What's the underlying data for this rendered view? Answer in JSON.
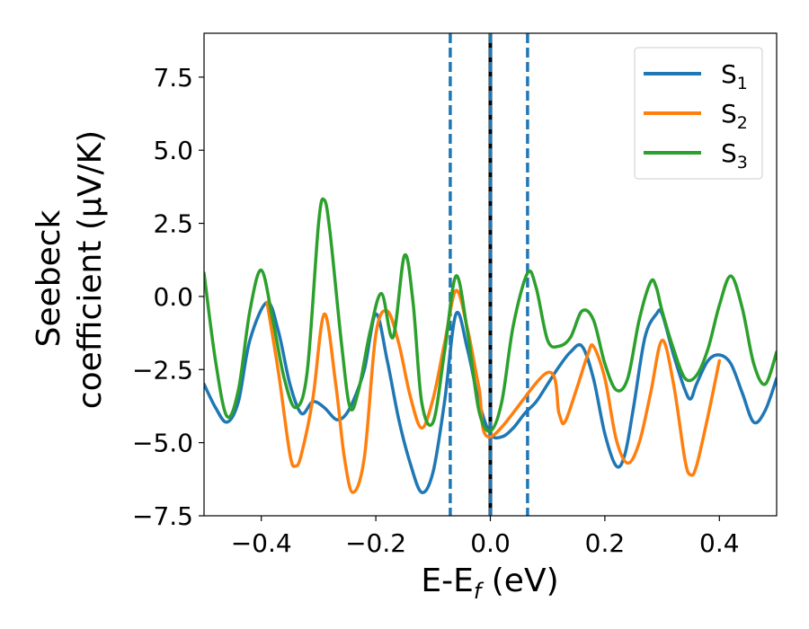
{
  "chart_data": {
    "type": "line",
    "xlabel": "E-E",
    "xlabel_sub": "f",
    "xlabel_unit": " (eV)",
    "ylabel_line1": "Seebeck",
    "ylabel_line2": "coefficient  (μV/K)",
    "xlim": [
      -0.5,
      0.5
    ],
    "ylim": [
      -7.5,
      9.0
    ],
    "xticks": [
      -0.4,
      -0.2,
      0.0,
      0.2,
      0.4
    ],
    "xtick_labels": [
      "−0.4",
      "−0.2",
      "0.0",
      "0.2",
      "0.4"
    ],
    "yticks": [
      -7.5,
      -5.0,
      -2.5,
      0.0,
      2.5,
      5.0,
      7.5
    ],
    "ytick_labels": [
      "−7.5",
      "−5.0",
      "−2.5",
      "0.0",
      "2.5",
      "5.0",
      "7.5"
    ],
    "legend_position": "top-right",
    "vlines": [
      {
        "x": -0.07,
        "style": "dashed",
        "color": "#1f77b4"
      },
      {
        "x": 0.0,
        "style": "solid",
        "color": "#000000"
      },
      {
        "x": 0.0,
        "style": "dashed",
        "color": "#1f77b4"
      },
      {
        "x": 0.065,
        "style": "dashed",
        "color": "#1f77b4"
      }
    ],
    "series": [
      {
        "name": "S",
        "sub": "1",
        "color": "#1f77b4",
        "x": [
          -0.5,
          -0.48,
          -0.46,
          -0.44,
          -0.42,
          -0.39,
          -0.37,
          -0.35,
          -0.33,
          -0.31,
          -0.29,
          -0.27,
          -0.255,
          -0.24,
          -0.22,
          -0.2,
          -0.18,
          -0.16,
          -0.14,
          -0.12,
          -0.1,
          -0.08,
          -0.06,
          -0.04,
          -0.02,
          0.0,
          0.02,
          0.04,
          0.06,
          0.08,
          0.1,
          0.12,
          0.14,
          0.16,
          0.18,
          0.2,
          0.22,
          0.235,
          0.25,
          0.27,
          0.29,
          0.3,
          0.32,
          0.34,
          0.35,
          0.36,
          0.38,
          0.4,
          0.42,
          0.44,
          0.46,
          0.48,
          0.5
        ],
        "y": [
          -3.0,
          -3.8,
          -4.3,
          -3.6,
          -1.5,
          -0.2,
          -1.2,
          -3.0,
          -4.0,
          -3.6,
          -3.8,
          -4.2,
          -4.1,
          -3.6,
          -2.5,
          -0.6,
          -2.2,
          -4.2,
          -5.7,
          -6.7,
          -6.0,
          -3.6,
          -0.6,
          -1.8,
          -3.6,
          -4.7,
          -4.8,
          -4.5,
          -4.0,
          -3.6,
          -3.0,
          -2.4,
          -1.9,
          -1.7,
          -2.8,
          -4.7,
          -5.8,
          -5.4,
          -3.8,
          -1.4,
          -0.6,
          -0.6,
          -2.0,
          -3.2,
          -3.5,
          -3.0,
          -2.2,
          -2.0,
          -2.3,
          -3.3,
          -4.3,
          -3.9,
          -2.8
        ]
      },
      {
        "name": "S",
        "sub": "2",
        "color": "#ff7f0e",
        "x": [
          -0.39,
          -0.37,
          -0.35,
          -0.34,
          -0.33,
          -0.31,
          -0.29,
          -0.27,
          -0.255,
          -0.24,
          -0.22,
          -0.2,
          -0.18,
          -0.16,
          -0.14,
          -0.12,
          -0.1,
          -0.08,
          -0.06,
          -0.04,
          -0.02,
          0.0,
          0.1,
          0.12,
          0.13,
          0.15,
          0.17,
          0.18,
          0.2,
          0.22,
          0.24,
          0.26,
          0.28,
          0.3,
          0.32,
          0.34,
          0.35,
          0.36,
          0.38,
          0.4
        ],
        "y": [
          -0.2,
          -2.6,
          -5.4,
          -5.8,
          -5.4,
          -3.5,
          -0.6,
          -3.0,
          -5.5,
          -6.7,
          -5.5,
          -1.3,
          -0.5,
          -1.6,
          -3.4,
          -4.5,
          -3.5,
          -1.6,
          0.2,
          -1.1,
          -3.1,
          -4.8,
          -2.6,
          -4.0,
          -4.3,
          -3.2,
          -2.0,
          -1.7,
          -2.8,
          -4.9,
          -5.7,
          -5.0,
          -3.3,
          -1.5,
          -3.0,
          -5.6,
          -6.1,
          -5.8,
          -4.1,
          -2.2
        ]
      },
      {
        "name": "S",
        "sub": "3",
        "color": "#2ca02c",
        "x": [
          -0.5,
          -0.48,
          -0.46,
          -0.44,
          -0.42,
          -0.4,
          -0.38,
          -0.36,
          -0.34,
          -0.32,
          -0.3,
          -0.29,
          -0.28,
          -0.26,
          -0.245,
          -0.23,
          -0.21,
          -0.19,
          -0.17,
          -0.15,
          -0.135,
          -0.12,
          -0.1,
          -0.08,
          -0.06,
          -0.04,
          -0.02,
          0.0,
          0.02,
          0.04,
          0.065,
          0.08,
          0.1,
          0.12,
          0.14,
          0.16,
          0.18,
          0.2,
          0.22,
          0.24,
          0.26,
          0.28,
          0.29,
          0.3,
          0.32,
          0.34,
          0.36,
          0.38,
          0.4,
          0.42,
          0.44,
          0.46,
          0.48,
          0.5
        ],
        "y": [
          0.8,
          -2.2,
          -4.1,
          -3.2,
          -0.5,
          0.9,
          -0.8,
          -2.8,
          -3.8,
          -2.6,
          2.5,
          3.3,
          2.2,
          -1.6,
          -3.8,
          -3.2,
          -1.2,
          0.1,
          -1.4,
          1.4,
          -0.2,
          -3.6,
          -4.3,
          -1.9,
          0.7,
          -1.2,
          -3.9,
          -4.6,
          -3.6,
          -1.0,
          0.8,
          0.3,
          -1.5,
          -1.7,
          -1.4,
          -0.5,
          -0.8,
          -2.3,
          -3.2,
          -2.8,
          -0.8,
          0.5,
          0.3,
          -0.5,
          -1.8,
          -2.8,
          -2.7,
          -1.8,
          -0.3,
          0.7,
          -0.4,
          -2.3,
          -3.0,
          -1.9
        ]
      }
    ]
  }
}
